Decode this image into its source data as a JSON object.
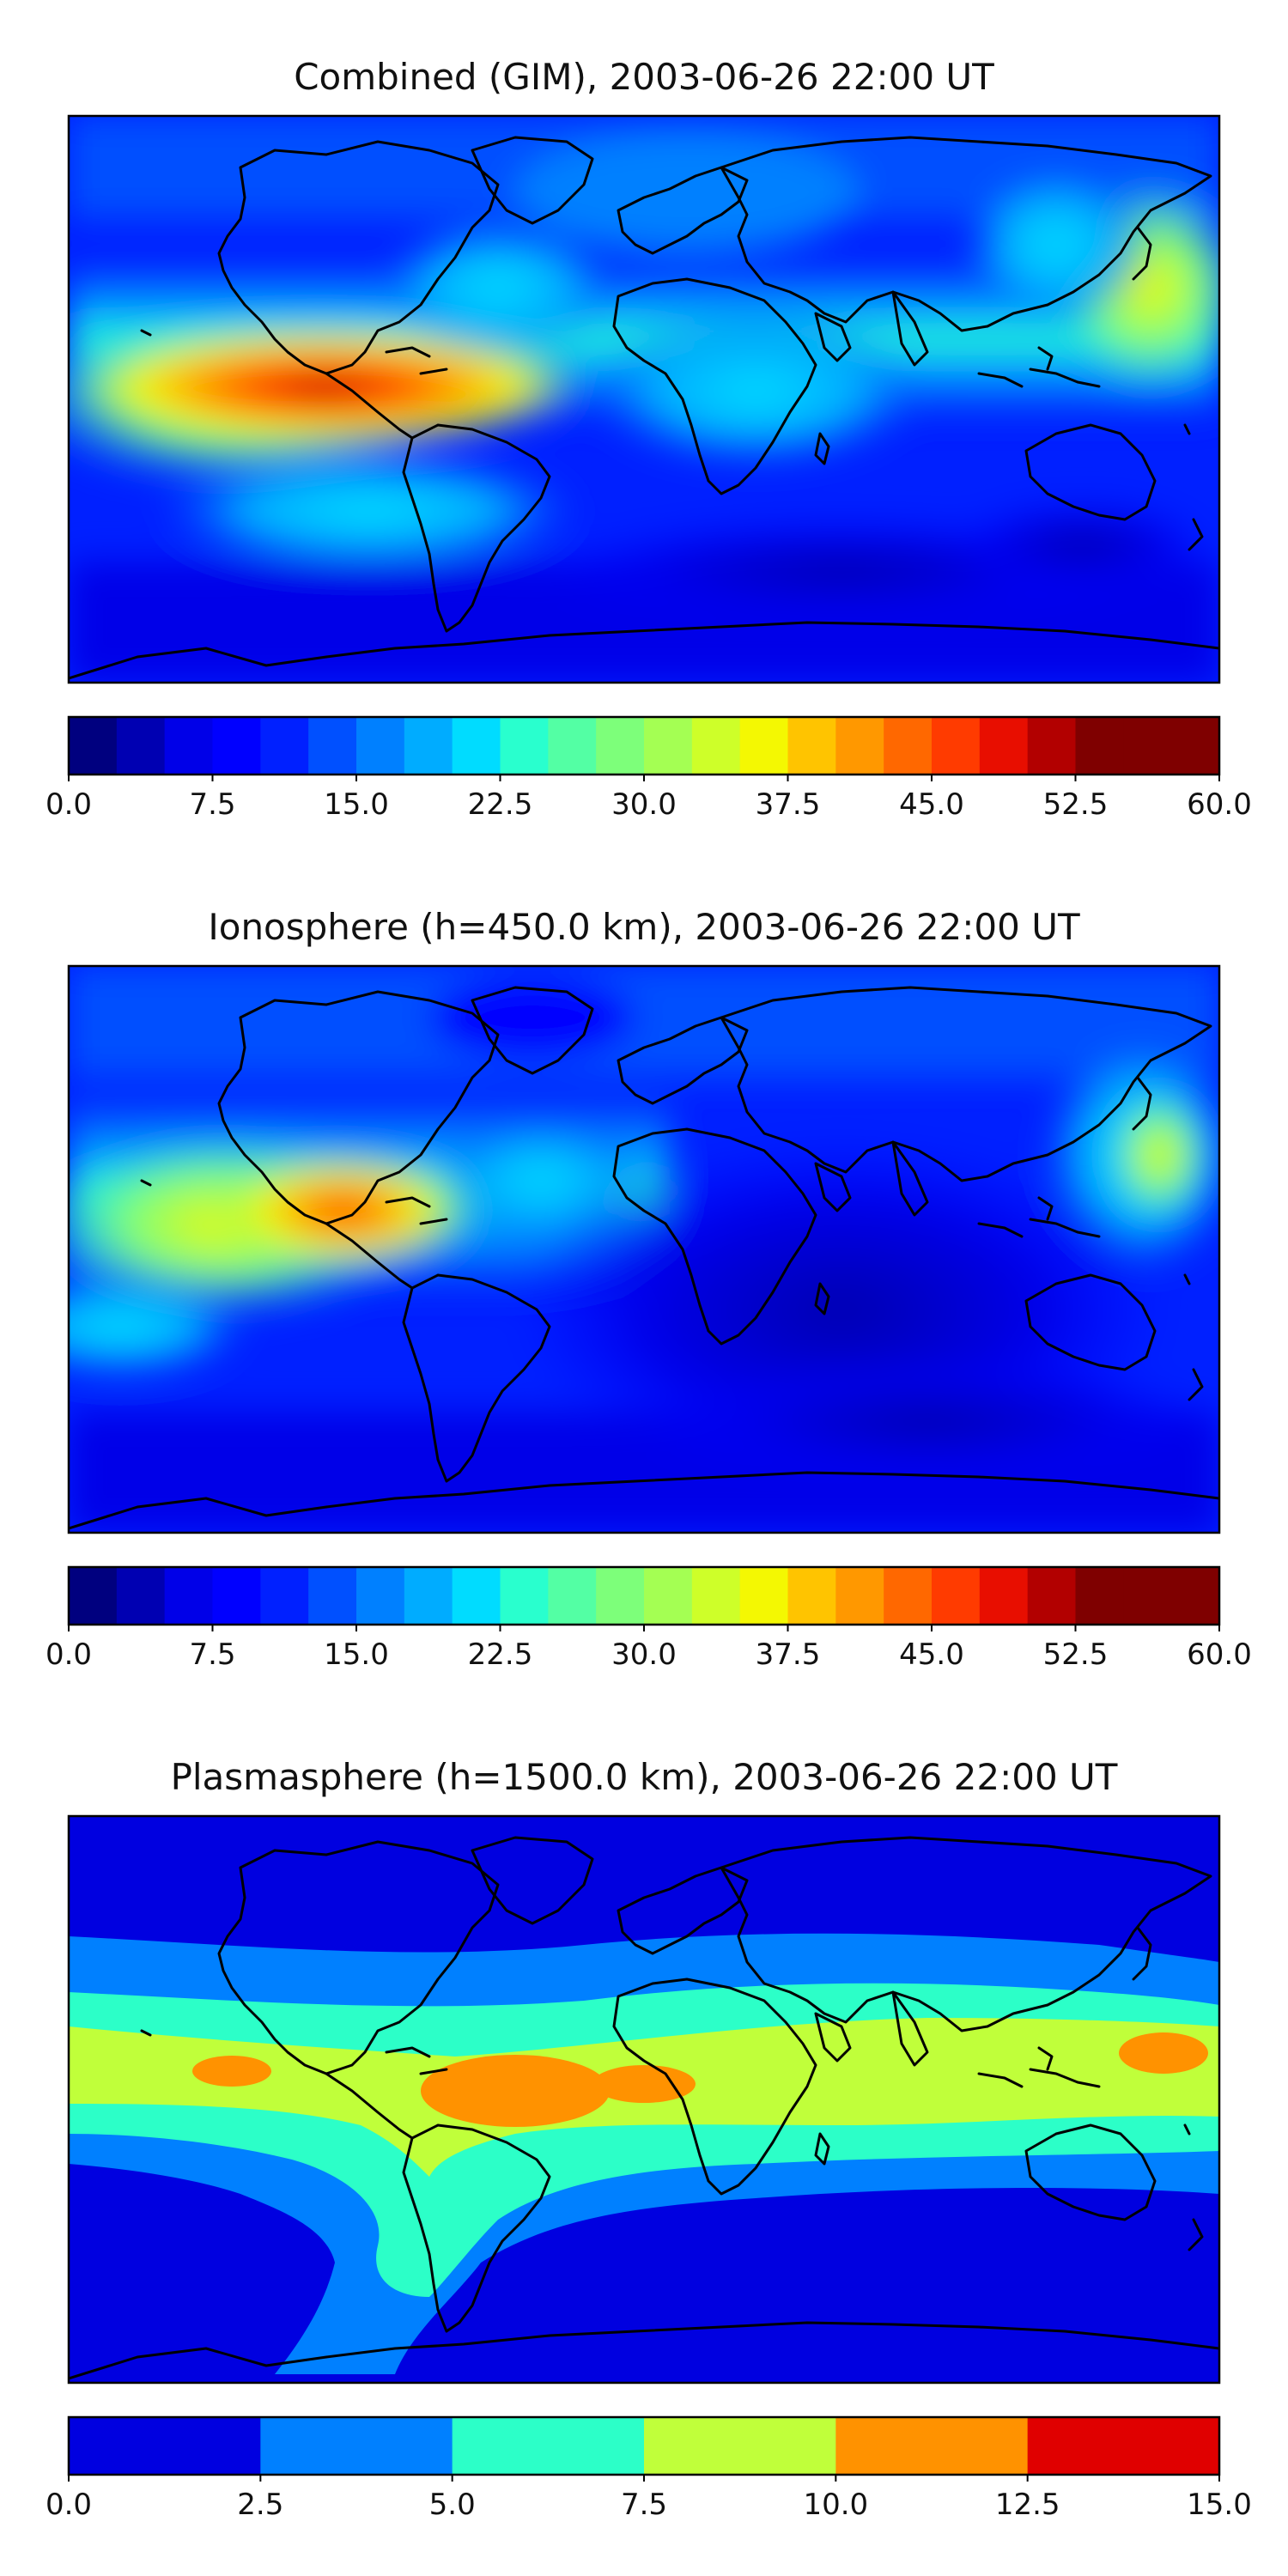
{
  "panels": [
    {
      "key": "combined",
      "title": "Combined (GIM), 2003-06-26 22:00 UT",
      "colorbar": {
        "min": 0,
        "max": 60,
        "levels": 24,
        "ticks": [
          "0.0",
          "7.5",
          "15.0",
          "22.5",
          "30.0",
          "37.5",
          "45.0",
          "52.5",
          "60.0"
        ],
        "colors": [
          "#00007f",
          "#0000b2",
          "#0000e8",
          "#0000ff",
          "#0020ff",
          "#0050ff",
          "#0080ff",
          "#00acff",
          "#00dcff",
          "#29ffce",
          "#53ffa4",
          "#7dff7a",
          "#a4ff53",
          "#ceff29",
          "#f4f802",
          "#ffc400",
          "#ff9800",
          "#ff6800",
          "#ff3b00",
          "#e80e00",
          "#b20000",
          "#7f0000",
          "#7f0000",
          "#7f0000"
        ]
      }
    },
    {
      "key": "ionosphere",
      "title": "Ionosphere  (h=450.0 km), 2003-06-26 22:00 UT",
      "colorbar": {
        "min": 0,
        "max": 60,
        "levels": 24,
        "ticks": [
          "0.0",
          "7.5",
          "15.0",
          "22.5",
          "30.0",
          "37.5",
          "45.0",
          "52.5",
          "60.0"
        ],
        "colors": [
          "#00007f",
          "#0000b2",
          "#0000e8",
          "#0000ff",
          "#0020ff",
          "#0050ff",
          "#0080ff",
          "#00acff",
          "#00dcff",
          "#29ffce",
          "#53ffa4",
          "#7dff7a",
          "#a4ff53",
          "#ceff29",
          "#f4f802",
          "#ffc400",
          "#ff9800",
          "#ff6800",
          "#ff3b00",
          "#e80e00",
          "#b20000",
          "#7f0000",
          "#7f0000",
          "#7f0000"
        ]
      }
    },
    {
      "key": "plasmasphere",
      "title": "Plasmasphere (h=1500.0 km), 2003-06-26 22:00 UT",
      "colorbar": {
        "min": 0,
        "max": 15,
        "levels": 6,
        "ticks": [
          "0.0",
          "2.5",
          "5.0",
          "7.5",
          "10.0",
          "12.5",
          "15.0"
        ],
        "colors": [
          "#0000e0",
          "#0080ff",
          "#2cffc8",
          "#c0ff3a",
          "#ff9200",
          "#e00000"
        ]
      }
    }
  ]
}
